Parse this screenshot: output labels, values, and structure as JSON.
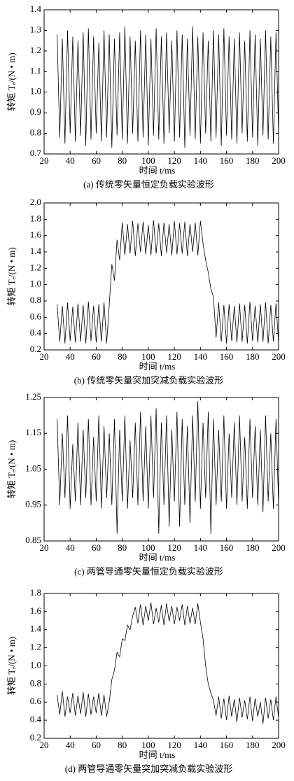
{
  "chart_data": [
    {
      "type": "line",
      "caption": "(a) 传统零矢量恒定负载实验波形",
      "xlabel": "时间 t/ms",
      "ylabel": "转矩 Tₑ/(N • m)",
      "color": "#000000",
      "x": [
        30,
        32,
        34,
        36,
        38,
        40,
        42,
        44,
        46,
        48,
        50,
        52,
        54,
        56,
        58,
        60,
        62,
        64,
        66,
        68,
        70,
        72,
        74,
        76,
        78,
        80,
        82,
        84,
        86,
        88,
        90,
        92,
        94,
        96,
        98,
        100,
        102,
        104,
        106,
        108,
        110,
        112,
        114,
        116,
        118,
        120,
        122,
        124,
        126,
        128,
        130,
        132,
        134,
        136,
        138,
        140,
        142,
        144,
        146,
        148,
        150,
        152,
        154,
        156,
        158,
        160,
        162,
        164,
        166,
        168,
        170,
        172,
        174,
        176,
        178,
        180,
        182,
        184,
        186,
        188,
        190,
        192,
        194,
        196,
        198,
        200
      ],
      "values": [
        1.28,
        0.78,
        1.26,
        0.75,
        1.3,
        0.8,
        1.27,
        0.76,
        1.25,
        0.79,
        1.29,
        0.74,
        1.31,
        0.77,
        1.27,
        0.8,
        1.24,
        0.76,
        1.3,
        0.78,
        1.28,
        0.73,
        1.26,
        0.79,
        1.29,
        0.77,
        1.32,
        0.75,
        1.27,
        0.8,
        1.25,
        0.76,
        1.3,
        0.78,
        1.28,
        0.74,
        1.26,
        0.79,
        1.31,
        0.77,
        1.27,
        0.75,
        1.29,
        0.8,
        1.25,
        0.76,
        1.3,
        0.78,
        1.28,
        0.73,
        1.26,
        0.79,
        1.32,
        0.77,
        1.27,
        0.75,
        1.29,
        0.8,
        1.25,
        0.76,
        1.3,
        0.78,
        1.28,
        0.74,
        1.31,
        0.79,
        1.27,
        0.77,
        1.26,
        0.75,
        1.29,
        0.8,
        1.25,
        0.76,
        1.3,
        0.78,
        1.28,
        0.74,
        1.26,
        0.79,
        1.3,
        0.77,
        1.27,
        0.75,
        1.29,
        0.8
      ],
      "xlim": [
        20,
        200
      ],
      "xticks": [
        20,
        40,
        60,
        80,
        100,
        120,
        140,
        160,
        180,
        200
      ],
      "ylim": [
        0.7,
        1.4
      ],
      "yticks": [
        0.7,
        0.8,
        0.9,
        {
          "value": 1,
          "label": "1.0"
        },
        1.1,
        1.2,
        1.3,
        1.4
      ]
    },
    {
      "type": "line",
      "caption": "(b) 传统零矢量突加突减负载实验波形",
      "xlabel": "时间 t/ms",
      "ylabel": "转矩 Tₑ/(N • m)",
      "color": "#000000",
      "x": [
        30,
        32,
        34,
        36,
        38,
        40,
        42,
        44,
        46,
        48,
        50,
        52,
        54,
        56,
        58,
        60,
        62,
        64,
        66,
        68,
        70,
        72,
        74,
        76,
        78,
        80,
        82,
        84,
        86,
        88,
        90,
        92,
        94,
        96,
        98,
        100,
        102,
        104,
        106,
        108,
        110,
        112,
        114,
        116,
        118,
        120,
        122,
        124,
        126,
        128,
        130,
        132,
        134,
        136,
        138,
        140,
        142,
        144,
        146,
        148,
        150,
        152,
        154,
        156,
        158,
        160,
        162,
        164,
        166,
        168,
        170,
        172,
        174,
        176,
        178,
        180,
        182,
        184,
        186,
        188,
        190,
        192,
        194,
        196,
        198,
        200
      ],
      "values": [
        0.76,
        0.3,
        0.74,
        0.28,
        0.78,
        0.31,
        0.73,
        0.29,
        0.77,
        0.3,
        0.75,
        0.28,
        0.79,
        0.31,
        0.74,
        0.29,
        0.76,
        0.3,
        0.78,
        0.28,
        0.75,
        1.25,
        1.05,
        1.55,
        1.3,
        1.76,
        1.36,
        1.74,
        1.38,
        1.78,
        1.35,
        1.75,
        1.4,
        1.77,
        1.37,
        1.73,
        1.36,
        1.79,
        1.38,
        1.75,
        1.35,
        1.76,
        1.39,
        1.74,
        1.36,
        1.78,
        1.37,
        1.75,
        1.38,
        1.77,
        1.35,
        1.74,
        1.4,
        1.76,
        1.36,
        1.78,
        1.5,
        1.3,
        1.15,
        0.95,
        0.85,
        0.35,
        0.78,
        0.3,
        0.75,
        0.28,
        0.76,
        0.31,
        0.74,
        0.29,
        0.77,
        0.3,
        0.75,
        0.28,
        0.79,
        0.31,
        0.74,
        0.29,
        0.76,
        0.3,
        0.78,
        0.28,
        0.75,
        0.3,
        0.77,
        0.29
      ],
      "xlim": [
        20,
        200
      ],
      "xticks": [
        20,
        40,
        60,
        80,
        100,
        120,
        140,
        160,
        180,
        200
      ],
      "ylim": [
        0.2,
        2.0
      ],
      "yticks": [
        0.2,
        0.4,
        0.6,
        0.8,
        {
          "value": 1,
          "label": "1.0"
        },
        1.2,
        1.4,
        1.6,
        1.8,
        {
          "value": 2,
          "label": "2.0"
        }
      ]
    },
    {
      "type": "line",
      "caption": "(c) 两管导通零矢量恒定负载实验波形",
      "xlabel": "时间 t/ms",
      "ylabel": "转矩 Tₑ/(N • m)",
      "color": "#000000",
      "x": [
        30,
        32,
        34,
        36,
        38,
        40,
        42,
        44,
        46,
        48,
        50,
        52,
        54,
        56,
        58,
        60,
        62,
        64,
        66,
        68,
        70,
        72,
        74,
        76,
        78,
        80,
        82,
        84,
        86,
        88,
        90,
        92,
        94,
        96,
        98,
        100,
        102,
        104,
        106,
        108,
        110,
        112,
        114,
        116,
        118,
        120,
        122,
        124,
        126,
        128,
        130,
        132,
        134,
        136,
        138,
        140,
        142,
        144,
        146,
        148,
        150,
        152,
        154,
        156,
        158,
        160,
        162,
        164,
        166,
        168,
        170,
        172,
        174,
        176,
        178,
        180,
        182,
        184,
        186,
        188,
        190,
        192,
        194,
        196,
        198,
        200
      ],
      "values": [
        1.19,
        0.95,
        1.15,
        0.97,
        1.2,
        0.94,
        1.12,
        0.96,
        1.18,
        0.95,
        1.16,
        0.97,
        1.19,
        0.95,
        1.14,
        0.96,
        1.2,
        0.94,
        1.17,
        0.97,
        1.15,
        0.95,
        1.19,
        0.87,
        1.16,
        0.96,
        1.2,
        0.94,
        1.13,
        0.97,
        1.18,
        0.95,
        1.21,
        0.96,
        1.17,
        0.94,
        1.2,
        0.97,
        1.22,
        0.87,
        1.18,
        0.95,
        1.2,
        0.89,
        1.16,
        0.96,
        1.21,
        0.89,
        1.19,
        0.95,
        1.17,
        0.9,
        1.2,
        0.96,
        1.24,
        0.94,
        1.18,
        0.97,
        1.21,
        0.87,
        1.19,
        0.95,
        1.16,
        0.96,
        1.2,
        0.94,
        1.15,
        0.97,
        1.18,
        0.95,
        1.2,
        0.96,
        1.14,
        0.94,
        1.19,
        0.97,
        1.17,
        0.95,
        1.16,
        0.93,
        1.2,
        0.96,
        1.15,
        0.94,
        1.19,
        0.95
      ],
      "xlim": [
        20,
        200
      ],
      "xticks": [
        20,
        40,
        60,
        80,
        100,
        120,
        140,
        160,
        180,
        200
      ],
      "ylim": [
        0.85,
        1.25
      ],
      "yticks": [
        0.85,
        0.95,
        1.05,
        1.15,
        1.25
      ]
    },
    {
      "type": "line",
      "caption": "(d) 两管导通零矢量突加突减负载实验波形",
      "xlabel": "时间 t/ms",
      "ylabel": "转矩 Tₑ/(N • m)",
      "color": "#000000",
      "x": [
        30,
        32,
        34,
        36,
        38,
        40,
        42,
        44,
        46,
        48,
        50,
        52,
        54,
        56,
        58,
        60,
        62,
        64,
        66,
        68,
        70,
        72,
        74,
        76,
        78,
        80,
        82,
        84,
        86,
        88,
        90,
        92,
        94,
        96,
        98,
        100,
        102,
        104,
        106,
        108,
        110,
        112,
        114,
        116,
        118,
        120,
        122,
        124,
        126,
        128,
        130,
        132,
        134,
        136,
        138,
        140,
        142,
        144,
        146,
        148,
        150,
        152,
        154,
        156,
        158,
        160,
        162,
        164,
        166,
        168,
        170,
        172,
        174,
        176,
        178,
        180,
        182,
        184,
        186,
        188,
        190,
        192,
        194,
        196,
        198,
        200
      ],
      "values": [
        0.68,
        0.46,
        0.72,
        0.44,
        0.66,
        0.48,
        0.7,
        0.45,
        0.67,
        0.47,
        0.71,
        0.44,
        0.69,
        0.46,
        0.66,
        0.48,
        0.7,
        0.45,
        0.68,
        0.44,
        0.6,
        0.85,
        0.95,
        1.15,
        1.1,
        1.3,
        1.28,
        1.45,
        1.4,
        1.55,
        1.65,
        1.47,
        1.68,
        1.45,
        1.66,
        1.5,
        1.7,
        1.46,
        1.64,
        1.48,
        1.67,
        1.45,
        1.69,
        1.49,
        1.66,
        1.46,
        1.65,
        1.5,
        1.68,
        1.45,
        1.66,
        1.47,
        1.64,
        1.46,
        1.69,
        1.48,
        1.3,
        1.0,
        0.8,
        0.7,
        0.62,
        0.45,
        0.66,
        0.42,
        0.64,
        0.4,
        0.67,
        0.44,
        0.63,
        0.38,
        0.65,
        0.43,
        0.62,
        0.41,
        0.66,
        0.39,
        0.64,
        0.44,
        0.6,
        0.36,
        0.65,
        0.42,
        0.63,
        0.4,
        0.66,
        0.43
      ],
      "xlim": [
        20,
        200
      ],
      "xticks": [
        20,
        40,
        60,
        80,
        100,
        120,
        140,
        160,
        180,
        200
      ],
      "ylim": [
        0.2,
        1.8
      ],
      "yticks": [
        0.2,
        0.4,
        0.6,
        0.8,
        {
          "value": 1,
          "label": "1.0"
        },
        1.2,
        1.4,
        1.6,
        1.8
      ]
    }
  ]
}
